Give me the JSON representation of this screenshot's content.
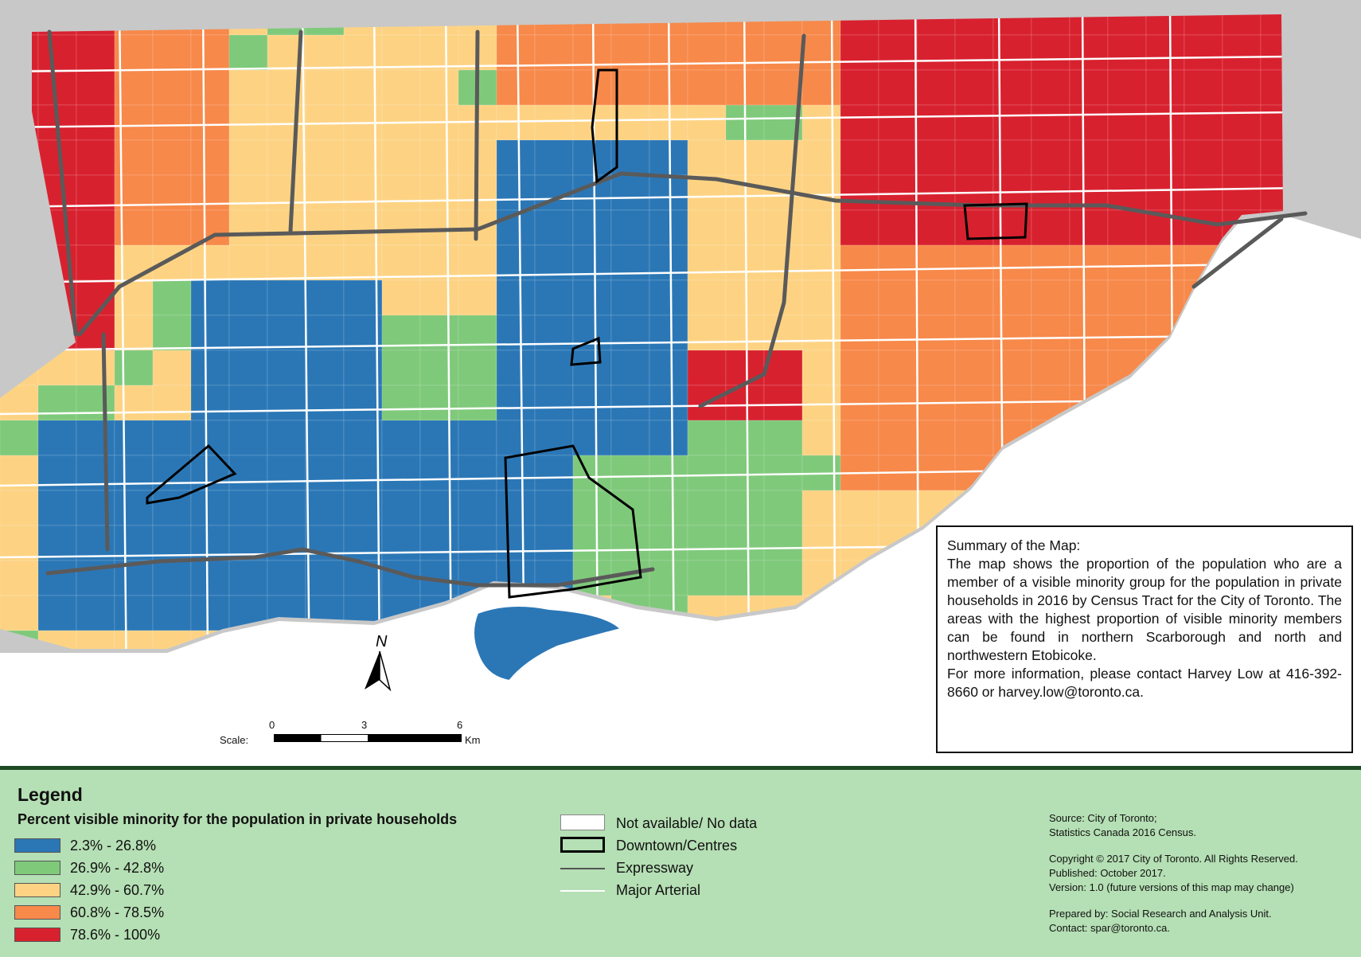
{
  "colors": {
    "class1": "#2b77b6",
    "class2": "#7fc97b",
    "class3": "#fdd383",
    "class4": "#f7894a",
    "class5": "#d8212f",
    "water": "#ffffff",
    "outside": "#c8c8c8",
    "legend_bg": "#b5dfb4",
    "expressway": "#5a5a5a",
    "arterial": "#ffffff"
  },
  "summary": {
    "title": "Summary of the Map:",
    "text": "The map shows the proportion of the population who are a member of a visible minority group for the population in private households in 2016 by Census Tract for the City of Toronto. The areas with the highest proportion of visible minority members can be found in northern Scarborough and north and northwestern Etobicoke.",
    "contact": "For more information, please contact Harvey Low at 416-392-8660 or harvey.low@toronto.ca."
  },
  "north_arrow": {
    "label": "N"
  },
  "scale": {
    "label": "Scale:",
    "ticks": [
      "0",
      "3",
      "6"
    ],
    "unit": "Km"
  },
  "legend": {
    "title": "Legend",
    "subtitle": "Percent visible minority for the population in private households",
    "classes": [
      {
        "label": "2.3% - 26.8%",
        "color": "#2b77b6"
      },
      {
        "label": "26.9% - 42.8%",
        "color": "#7fc97b"
      },
      {
        "label": "42.9% - 60.7%",
        "color": "#fdd383"
      },
      {
        "label": "60.8% - 78.5%",
        "color": "#f7894a"
      },
      {
        "label": "78.6% - 100%",
        "color": "#d8212f"
      }
    ],
    "symbols": [
      {
        "label": "Not available/ No data",
        "kind": "empty"
      },
      {
        "label": "Downtown/Centres",
        "kind": "outline"
      },
      {
        "label": "Expressway",
        "kind": "expressway"
      },
      {
        "label": "Major Arterial",
        "kind": "arterial"
      }
    ]
  },
  "credits": {
    "source": [
      "Source: City of Toronto;",
      "Statistics Canada 2016 Census."
    ],
    "copyright": [
      "Copyright © 2017 City of Toronto. All Rights Reserved.",
      "Published: October 2017.",
      "Version: 1.0 (future versions of this map may change)"
    ],
    "prepared": [
      "Prepared by: Social Research and Analysis Unit.",
      "Contact: spar@toronto.ca."
    ]
  }
}
